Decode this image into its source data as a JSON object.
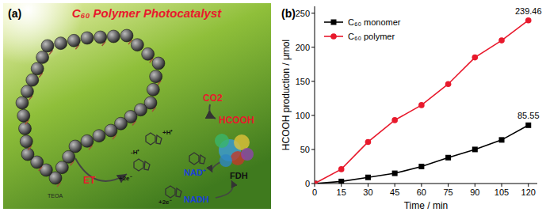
{
  "panel_a": {
    "label": "(a)",
    "title": "C₆₀ Polymer Photocatalyst",
    "electron_transfer": "ET",
    "donor": "TEOA",
    "steps": [
      "+2e⁻",
      "+H⁺",
      "+2e⁻",
      "-H⁺"
    ],
    "cofactor_oxidized": "NAD⁺",
    "cofactor_reduced": "NADH",
    "enzyme": "FDH",
    "substrate": "CO2",
    "product": "HCOOH"
  },
  "chart_data": {
    "type": "line",
    "panel_label": "(b)",
    "x_label": "Time / min",
    "y_label": "HCOOH production / μmol",
    "x": [
      0,
      15,
      30,
      45,
      60,
      75,
      90,
      105,
      120
    ],
    "series": [
      {
        "name": "C₆₀ monomer",
        "color": "#000000",
        "marker": "square",
        "values": [
          0,
          3,
          9,
          15,
          25,
          38,
          50,
          64,
          85.55
        ]
      },
      {
        "name": "C₆₀ polymer",
        "color": "#e8192c",
        "marker": "circle",
        "values": [
          0,
          21,
          61,
          93,
          115,
          146,
          185,
          210,
          239.46
        ]
      }
    ],
    "xlim": [
      0,
      125
    ],
    "xticks": [
      0,
      15,
      30,
      45,
      60,
      75,
      90,
      105,
      120
    ],
    "ylim": [
      0,
      260
    ],
    "yticks": [
      0,
      50,
      100,
      150,
      200,
      250
    ],
    "legend": "upper left",
    "grid": false,
    "annotations": [
      {
        "text": "239.46",
        "x": 120,
        "y": 239.46
      },
      {
        "text": "85.55",
        "x": 120,
        "y": 85.55
      }
    ]
  }
}
